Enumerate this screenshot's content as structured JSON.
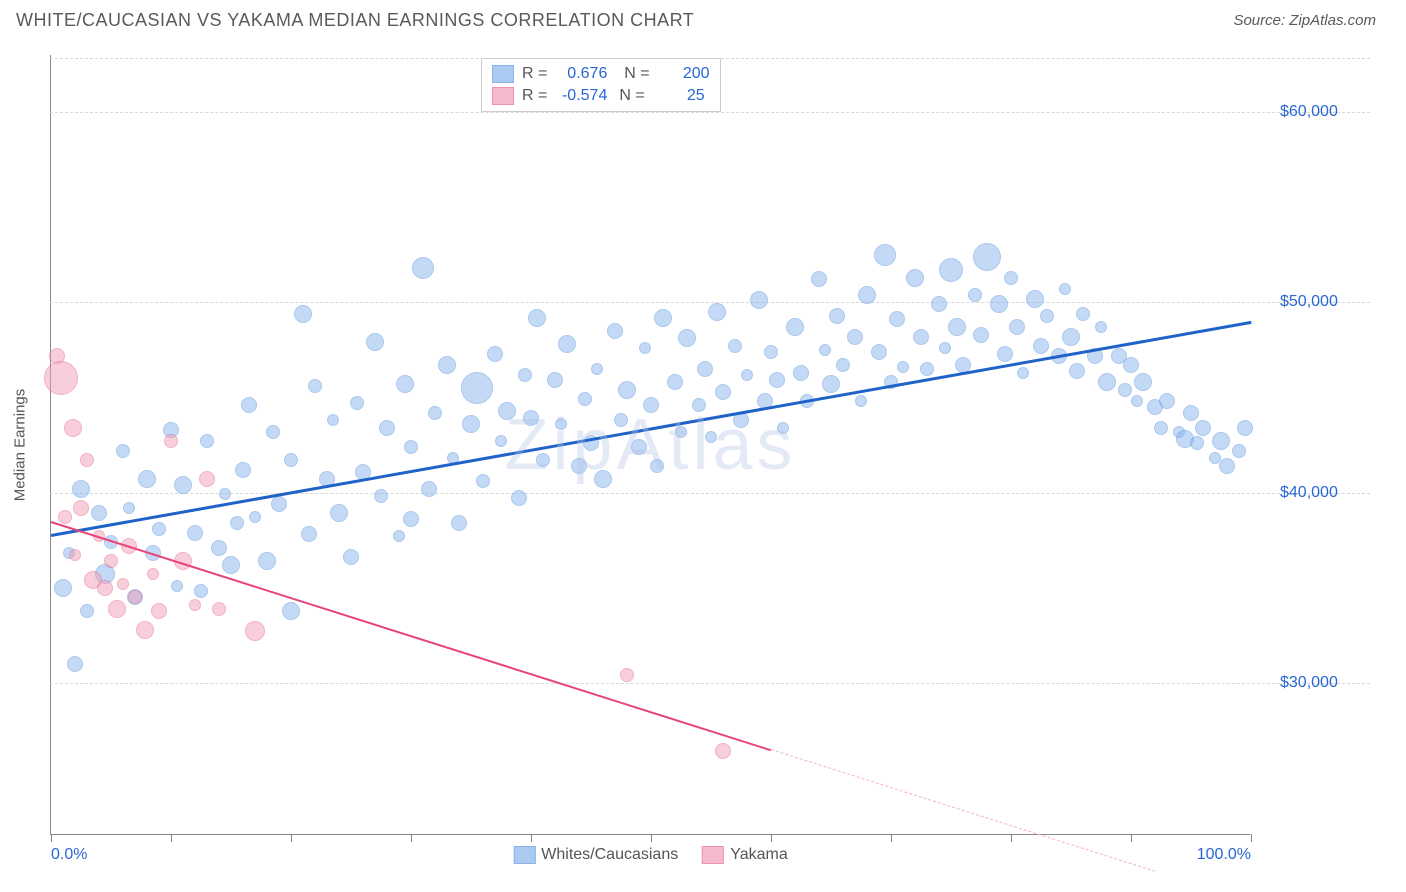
{
  "title": "WHITE/CAUCASIAN VS YAKAMA MEDIAN EARNINGS CORRELATION CHART",
  "source": "Source: ZipAtlas.com",
  "watermark": "ZipAtlas",
  "chart": {
    "type": "scatter",
    "ylabel": "Median Earnings",
    "x_range": [
      0,
      100
    ],
    "y_range": [
      22000,
      63000
    ],
    "y_ticks": [
      30000,
      40000,
      50000,
      60000
    ],
    "y_tick_labels": [
      "$30,000",
      "$40,000",
      "$50,000",
      "$60,000"
    ],
    "x_ticks": [
      0,
      10,
      20,
      30,
      40,
      50,
      60,
      70,
      80,
      90,
      100
    ],
    "x_tick_labels": {
      "0": "0.0%",
      "100": "100.0%"
    },
    "grid_color": "#d8d8d8",
    "axis_color": "#888888",
    "background_color": "#ffffff",
    "series": [
      {
        "name": "Whites/Caucasians",
        "fill_color": "#88b4ec",
        "stroke_color": "#5a93dd",
        "fill_opacity": 0.5,
        "correlation_R": "0.676",
        "correlation_N": "200",
        "trend": {
          "x1": 0,
          "y1": 37800,
          "x2": 100,
          "y2": 49000,
          "color": "#1f63c9",
          "width": 2.5
        },
        "points": [
          {
            "x": 1,
            "y": 35000,
            "r": 9
          },
          {
            "x": 1.5,
            "y": 36800,
            "r": 6
          },
          {
            "x": 2,
            "y": 31000,
            "r": 8
          },
          {
            "x": 2.5,
            "y": 40200,
            "r": 9
          },
          {
            "x": 3,
            "y": 33800,
            "r": 7
          },
          {
            "x": 4,
            "y": 38900,
            "r": 8
          },
          {
            "x": 4.5,
            "y": 35700,
            "r": 10
          },
          {
            "x": 5,
            "y": 37400,
            "r": 7
          },
          {
            "x": 6,
            "y": 42200,
            "r": 7
          },
          {
            "x": 6.5,
            "y": 39200,
            "r": 6
          },
          {
            "x": 7,
            "y": 34500,
            "r": 8
          },
          {
            "x": 8,
            "y": 40700,
            "r": 9
          },
          {
            "x": 8.5,
            "y": 36800,
            "r": 8
          },
          {
            "x": 9,
            "y": 38100,
            "r": 7
          },
          {
            "x": 10,
            "y": 43300,
            "r": 8
          },
          {
            "x": 10.5,
            "y": 35100,
            "r": 6
          },
          {
            "x": 11,
            "y": 40400,
            "r": 9
          },
          {
            "x": 12,
            "y": 37900,
            "r": 8
          },
          {
            "x": 12.5,
            "y": 34800,
            "r": 7
          },
          {
            "x": 13,
            "y": 42700,
            "r": 7
          },
          {
            "x": 14,
            "y": 37100,
            "r": 8
          },
          {
            "x": 14.5,
            "y": 39900,
            "r": 6
          },
          {
            "x": 15,
            "y": 36200,
            "r": 9
          },
          {
            "x": 15.5,
            "y": 38400,
            "r": 7
          },
          {
            "x": 16,
            "y": 41200,
            "r": 8
          },
          {
            "x": 16.5,
            "y": 44600,
            "r": 8
          },
          {
            "x": 17,
            "y": 38700,
            "r": 6
          },
          {
            "x": 18,
            "y": 36400,
            "r": 9
          },
          {
            "x": 18.5,
            "y": 43200,
            "r": 7
          },
          {
            "x": 19,
            "y": 39400,
            "r": 8
          },
          {
            "x": 20,
            "y": 41700,
            "r": 7
          },
          {
            "x": 20,
            "y": 33800,
            "r": 9
          },
          {
            "x": 21,
            "y": 49400,
            "r": 9
          },
          {
            "x": 21.5,
            "y": 37800,
            "r": 8
          },
          {
            "x": 22,
            "y": 45600,
            "r": 7
          },
          {
            "x": 23,
            "y": 40700,
            "r": 8
          },
          {
            "x": 23.5,
            "y": 43800,
            "r": 6
          },
          {
            "x": 24,
            "y": 38900,
            "r": 9
          },
          {
            "x": 25,
            "y": 36600,
            "r": 8
          },
          {
            "x": 25.5,
            "y": 44700,
            "r": 7
          },
          {
            "x": 26,
            "y": 41100,
            "r": 8
          },
          {
            "x": 27,
            "y": 47900,
            "r": 9
          },
          {
            "x": 27.5,
            "y": 39800,
            "r": 7
          },
          {
            "x": 28,
            "y": 43400,
            "r": 8
          },
          {
            "x": 29,
            "y": 37700,
            "r": 6
          },
          {
            "x": 29.5,
            "y": 45700,
            "r": 9
          },
          {
            "x": 30,
            "y": 42400,
            "r": 7
          },
          {
            "x": 30,
            "y": 38600,
            "r": 8
          },
          {
            "x": 31,
            "y": 51800,
            "r": 11
          },
          {
            "x": 31.5,
            "y": 40200,
            "r": 8
          },
          {
            "x": 32,
            "y": 44200,
            "r": 7
          },
          {
            "x": 33,
            "y": 46700,
            "r": 9
          },
          {
            "x": 33.5,
            "y": 41800,
            "r": 6
          },
          {
            "x": 34,
            "y": 38400,
            "r": 8
          },
          {
            "x": 35,
            "y": 43600,
            "r": 9
          },
          {
            "x": 35.5,
            "y": 45500,
            "r": 16
          },
          {
            "x": 36,
            "y": 40600,
            "r": 7
          },
          {
            "x": 37,
            "y": 47300,
            "r": 8
          },
          {
            "x": 37.5,
            "y": 42700,
            "r": 6
          },
          {
            "x": 38,
            "y": 44300,
            "r": 9
          },
          {
            "x": 39,
            "y": 39700,
            "r": 8
          },
          {
            "x": 39.5,
            "y": 46200,
            "r": 7
          },
          {
            "x": 40,
            "y": 43900,
            "r": 8
          },
          {
            "x": 40.5,
            "y": 49200,
            "r": 9
          },
          {
            "x": 41,
            "y": 41700,
            "r": 7
          },
          {
            "x": 42,
            "y": 45900,
            "r": 8
          },
          {
            "x": 42.5,
            "y": 43600,
            "r": 6
          },
          {
            "x": 43,
            "y": 47800,
            "r": 9
          },
          {
            "x": 44,
            "y": 41400,
            "r": 8
          },
          {
            "x": 44.5,
            "y": 44900,
            "r": 7
          },
          {
            "x": 45,
            "y": 42600,
            "r": 8
          },
          {
            "x": 45.5,
            "y": 46500,
            "r": 6
          },
          {
            "x": 46,
            "y": 40700,
            "r": 9
          },
          {
            "x": 47,
            "y": 48500,
            "r": 8
          },
          {
            "x": 47.5,
            "y": 43800,
            "r": 7
          },
          {
            "x": 48,
            "y": 45400,
            "r": 9
          },
          {
            "x": 49,
            "y": 42400,
            "r": 8
          },
          {
            "x": 49.5,
            "y": 47600,
            "r": 6
          },
          {
            "x": 50,
            "y": 44600,
            "r": 8
          },
          {
            "x": 50.5,
            "y": 41400,
            "r": 7
          },
          {
            "x": 51,
            "y": 49200,
            "r": 9
          },
          {
            "x": 52,
            "y": 45800,
            "r": 8
          },
          {
            "x": 52.5,
            "y": 43200,
            "r": 6
          },
          {
            "x": 53,
            "y": 48100,
            "r": 9
          },
          {
            "x": 54,
            "y": 44600,
            "r": 7
          },
          {
            "x": 54.5,
            "y": 46500,
            "r": 8
          },
          {
            "x": 55,
            "y": 42900,
            "r": 6
          },
          {
            "x": 55.5,
            "y": 49500,
            "r": 9
          },
          {
            "x": 56,
            "y": 45300,
            "r": 8
          },
          {
            "x": 57,
            "y": 47700,
            "r": 7
          },
          {
            "x": 57.5,
            "y": 43800,
            "r": 8
          },
          {
            "x": 58,
            "y": 46200,
            "r": 6
          },
          {
            "x": 59,
            "y": 50100,
            "r": 9
          },
          {
            "x": 59.5,
            "y": 44800,
            "r": 8
          },
          {
            "x": 60,
            "y": 47400,
            "r": 7
          },
          {
            "x": 60.5,
            "y": 45900,
            "r": 8
          },
          {
            "x": 61,
            "y": 43400,
            "r": 6
          },
          {
            "x": 62,
            "y": 48700,
            "r": 9
          },
          {
            "x": 62.5,
            "y": 46300,
            "r": 8
          },
          {
            "x": 63,
            "y": 44800,
            "r": 7
          },
          {
            "x": 64,
            "y": 51200,
            "r": 8
          },
          {
            "x": 64.5,
            "y": 47500,
            "r": 6
          },
          {
            "x": 65,
            "y": 45700,
            "r": 9
          },
          {
            "x": 65.5,
            "y": 49300,
            "r": 8
          },
          {
            "x": 66,
            "y": 46700,
            "r": 7
          },
          {
            "x": 67,
            "y": 48200,
            "r": 8
          },
          {
            "x": 67.5,
            "y": 44800,
            "r": 6
          },
          {
            "x": 68,
            "y": 50400,
            "r": 9
          },
          {
            "x": 69,
            "y": 47400,
            "r": 8
          },
          {
            "x": 69.5,
            "y": 52500,
            "r": 11
          },
          {
            "x": 70,
            "y": 45800,
            "r": 7
          },
          {
            "x": 70.5,
            "y": 49100,
            "r": 8
          },
          {
            "x": 71,
            "y": 46600,
            "r": 6
          },
          {
            "x": 72,
            "y": 51300,
            "r": 9
          },
          {
            "x": 72.5,
            "y": 48200,
            "r": 8
          },
          {
            "x": 73,
            "y": 46500,
            "r": 7
          },
          {
            "x": 74,
            "y": 49900,
            "r": 8
          },
          {
            "x": 74.5,
            "y": 47600,
            "r": 6
          },
          {
            "x": 75,
            "y": 51700,
            "r": 12
          },
          {
            "x": 75.5,
            "y": 48700,
            "r": 9
          },
          {
            "x": 76,
            "y": 46700,
            "r": 8
          },
          {
            "x": 77,
            "y": 50400,
            "r": 7
          },
          {
            "x": 77.5,
            "y": 48300,
            "r": 8
          },
          {
            "x": 78,
            "y": 52400,
            "r": 14
          },
          {
            "x": 79,
            "y": 49900,
            "r": 9
          },
          {
            "x": 79.5,
            "y": 47300,
            "r": 8
          },
          {
            "x": 80,
            "y": 51300,
            "r": 7
          },
          {
            "x": 80.5,
            "y": 48700,
            "r": 8
          },
          {
            "x": 81,
            "y": 46300,
            "r": 6
          },
          {
            "x": 82,
            "y": 50200,
            "r": 9
          },
          {
            "x": 82.5,
            "y": 47700,
            "r": 8
          },
          {
            "x": 83,
            "y": 49300,
            "r": 7
          },
          {
            "x": 84,
            "y": 47200,
            "r": 8
          },
          {
            "x": 84.5,
            "y": 50700,
            "r": 6
          },
          {
            "x": 85,
            "y": 48200,
            "r": 9
          },
          {
            "x": 85.5,
            "y": 46400,
            "r": 8
          },
          {
            "x": 86,
            "y": 49400,
            "r": 7
          },
          {
            "x": 87,
            "y": 47200,
            "r": 8
          },
          {
            "x": 87.5,
            "y": 48700,
            "r": 6
          },
          {
            "x": 88,
            "y": 45800,
            "r": 9
          },
          {
            "x": 89,
            "y": 47200,
            "r": 8
          },
          {
            "x": 89.5,
            "y": 45400,
            "r": 7
          },
          {
            "x": 90,
            "y": 46700,
            "r": 8
          },
          {
            "x": 90.5,
            "y": 44800,
            "r": 6
          },
          {
            "x": 91,
            "y": 45800,
            "r": 9
          },
          {
            "x": 92,
            "y": 44500,
            "r": 8
          },
          {
            "x": 92.5,
            "y": 43400,
            "r": 7
          },
          {
            "x": 93,
            "y": 44800,
            "r": 8
          },
          {
            "x": 94,
            "y": 43200,
            "r": 6
          },
          {
            "x": 94.5,
            "y": 42800,
            "r": 9
          },
          {
            "x": 95,
            "y": 44200,
            "r": 8
          },
          {
            "x": 95.5,
            "y": 42600,
            "r": 7
          },
          {
            "x": 96,
            "y": 43400,
            "r": 8
          },
          {
            "x": 97,
            "y": 41800,
            "r": 6
          },
          {
            "x": 97.5,
            "y": 42700,
            "r": 9
          },
          {
            "x": 98,
            "y": 41400,
            "r": 8
          },
          {
            "x": 99,
            "y": 42200,
            "r": 7
          },
          {
            "x": 99.5,
            "y": 43400,
            "r": 8
          }
        ]
      },
      {
        "name": "Yakama",
        "fill_color": "#f29fb7",
        "stroke_color": "#e8658e",
        "fill_opacity": 0.5,
        "correlation_R": "-0.574",
        "correlation_N": "25",
        "trend": {
          "x1": 0,
          "y1": 38500,
          "x2": 60,
          "y2": 26500,
          "color": "#e8447a",
          "width": 1.8
        },
        "trend_dashed": {
          "x1": 60,
          "y1": 26500,
          "x2": 92,
          "y2": 20100,
          "color": "#f2b3c6"
        },
        "points": [
          {
            "x": 0.5,
            "y": 47200,
            "r": 8
          },
          {
            "x": 0.8,
            "y": 46000,
            "r": 17
          },
          {
            "x": 1.2,
            "y": 38700,
            "r": 7
          },
          {
            "x": 1.8,
            "y": 43400,
            "r": 9
          },
          {
            "x": 2,
            "y": 36700,
            "r": 6
          },
          {
            "x": 2.5,
            "y": 39200,
            "r": 8
          },
          {
            "x": 3,
            "y": 41700,
            "r": 7
          },
          {
            "x": 3.5,
            "y": 35400,
            "r": 9
          },
          {
            "x": 4,
            "y": 37700,
            "r": 6
          },
          {
            "x": 4.5,
            "y": 35000,
            "r": 8
          },
          {
            "x": 5,
            "y": 36400,
            "r": 7
          },
          {
            "x": 5.5,
            "y": 33900,
            "r": 9
          },
          {
            "x": 6,
            "y": 35200,
            "r": 6
          },
          {
            "x": 6.5,
            "y": 37200,
            "r": 8
          },
          {
            "x": 7,
            "y": 34500,
            "r": 7
          },
          {
            "x": 7.8,
            "y": 32800,
            "r": 9
          },
          {
            "x": 8.5,
            "y": 35700,
            "r": 6
          },
          {
            "x": 9,
            "y": 33800,
            "r": 8
          },
          {
            "x": 10,
            "y": 42700,
            "r": 7
          },
          {
            "x": 11,
            "y": 36400,
            "r": 9
          },
          {
            "x": 12,
            "y": 34100,
            "r": 6
          },
          {
            "x": 13,
            "y": 40700,
            "r": 8
          },
          {
            "x": 14,
            "y": 33900,
            "r": 7
          },
          {
            "x": 17,
            "y": 32700,
            "r": 10
          },
          {
            "x": 48,
            "y": 30400,
            "r": 7
          },
          {
            "x": 56,
            "y": 26400,
            "r": 8
          }
        ]
      }
    ]
  }
}
